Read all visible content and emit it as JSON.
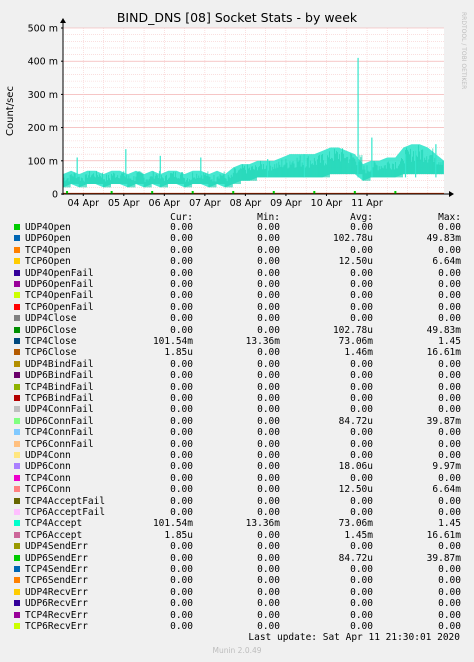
{
  "chart_data": {
    "type": "area",
    "title": "BIND_DNS [08] Socket Stats - by week",
    "ylabel": "Count/sec",
    "y_ticks": [
      "0",
      "100 m",
      "200 m",
      "300 m",
      "400 m",
      "500 m"
    ],
    "ylim": [
      0,
      0.5
    ],
    "x_ticks": [
      "04 Apr",
      "05 Apr",
      "06 Apr",
      "07 Apr",
      "08 Apr",
      "09 Apr",
      "10 Apr",
      "11 Apr"
    ],
    "watermark": "RRDTOOL / TOBI OETIKER",
    "grid": true,
    "series": [
      {
        "name": "TCP4Accept",
        "color": "#33e6cc",
        "approx_envelope": {
          "x": [
            0.0,
            0.2,
            0.4,
            0.6,
            0.8,
            1.0,
            1.2,
            1.4,
            1.6,
            1.8,
            2.0,
            2.2,
            2.4,
            2.6,
            2.8,
            3.0,
            3.2,
            3.4,
            3.6,
            3.8,
            4.0,
            4.2,
            4.4,
            4.6,
            4.8,
            5.0,
            5.2,
            5.4,
            5.6,
            5.8,
            6.0,
            6.2,
            6.4,
            6.6,
            6.8,
            7.0,
            7.2,
            7.4,
            7.6,
            7.8,
            8.0,
            8.2,
            8.4,
            8.6,
            8.8,
            9.0,
            9.2,
            9.4
          ],
          "low": [
            0.02,
            0.03,
            0.02,
            0.03,
            0.03,
            0.02,
            0.03,
            0.03,
            0.02,
            0.03,
            0.02,
            0.03,
            0.02,
            0.03,
            0.03,
            0.02,
            0.03,
            0.03,
            0.02,
            0.03,
            0.02,
            0.03,
            0.04,
            0.04,
            0.05,
            0.05,
            0.05,
            0.05,
            0.05,
            0.05,
            0.05,
            0.05,
            0.05,
            0.06,
            0.06,
            0.06,
            0.06,
            0.04,
            0.05,
            0.05,
            0.05,
            0.05,
            0.06,
            0.06,
            0.06,
            0.06,
            0.06,
            0.06
          ],
          "high": [
            0.06,
            0.07,
            0.06,
            0.07,
            0.07,
            0.06,
            0.07,
            0.07,
            0.06,
            0.07,
            0.06,
            0.07,
            0.06,
            0.07,
            0.07,
            0.06,
            0.07,
            0.07,
            0.06,
            0.07,
            0.06,
            0.08,
            0.09,
            0.09,
            0.1,
            0.1,
            0.1,
            0.11,
            0.12,
            0.12,
            0.12,
            0.12,
            0.13,
            0.14,
            0.14,
            0.13,
            0.12,
            0.09,
            0.1,
            0.1,
            0.11,
            0.11,
            0.14,
            0.15,
            0.15,
            0.14,
            0.12,
            0.1
          ]
        },
        "spikes": [
          [
            0.35,
            0.11
          ],
          [
            1.55,
            0.135
          ],
          [
            2.4,
            0.115
          ],
          [
            3.4,
            0.11
          ],
          [
            5.05,
            0.105
          ],
          [
            5.95,
            0.12
          ],
          [
            7.28,
            0.41
          ],
          [
            7.62,
            0.17
          ],
          [
            8.45,
            0.12
          ],
          [
            8.7,
            0.13
          ],
          [
            9.2,
            0.15
          ]
        ]
      },
      {
        "name": "TCP6Close",
        "color": "#cc3300",
        "baseline": 0.002
      },
      {
        "name": "UDP6Open",
        "color": "#00cc00",
        "markers": [
          0.1,
          1.2,
          2.2,
          3.2,
          4.2,
          5.2,
          6.2,
          7.2,
          8.2
        ]
      }
    ]
  },
  "legend": {
    "headers": {
      "cur": "Cur:",
      "min": "Min:",
      "avg": "Avg:",
      "max": "Max:"
    },
    "rows": [
      {
        "name": "UDP4Open",
        "color": "#00cc00",
        "cur": "0.00",
        "min": "0.00",
        "avg": "0.00",
        "max": "0.00"
      },
      {
        "name": "UDP6Open",
        "color": "#0066b3",
        "cur": "0.00",
        "min": "0.00",
        "avg": "102.78u",
        "max": "49.83m"
      },
      {
        "name": "TCP4Open",
        "color": "#ff8000",
        "cur": "0.00",
        "min": "0.00",
        "avg": "0.00",
        "max": "0.00"
      },
      {
        "name": "TCP6Open",
        "color": "#ffcc00",
        "cur": "0.00",
        "min": "0.00",
        "avg": "12.50u",
        "max": "6.64m"
      },
      {
        "name": "UDP4OpenFail",
        "color": "#330099",
        "cur": "0.00",
        "min": "0.00",
        "avg": "0.00",
        "max": "0.00"
      },
      {
        "name": "UDP6OpenFail",
        "color": "#990099",
        "cur": "0.00",
        "min": "0.00",
        "avg": "0.00",
        "max": "0.00"
      },
      {
        "name": "TCP4OpenFail",
        "color": "#ccff00",
        "cur": "0.00",
        "min": "0.00",
        "avg": "0.00",
        "max": "0.00"
      },
      {
        "name": "TCP6OpenFail",
        "color": "#ff0000",
        "cur": "0.00",
        "min": "0.00",
        "avg": "0.00",
        "max": "0.00"
      },
      {
        "name": "UDP4Close",
        "color": "#808080",
        "cur": "0.00",
        "min": "0.00",
        "avg": "0.00",
        "max": "0.00"
      },
      {
        "name": "UDP6Close",
        "color": "#008f00",
        "cur": "0.00",
        "min": "0.00",
        "avg": "102.78u",
        "max": "49.83m"
      },
      {
        "name": "TCP4Close",
        "color": "#00487d",
        "cur": "101.54m",
        "min": "13.36m",
        "avg": "73.06m",
        "max": "1.45"
      },
      {
        "name": "TCP6Close",
        "color": "#b35a00",
        "cur": "1.85u",
        "min": "0.00",
        "avg": "1.46m",
        "max": "16.61m"
      },
      {
        "name": "UDP4BindFail",
        "color": "#b38f00",
        "cur": "0.00",
        "min": "0.00",
        "avg": "0.00",
        "max": "0.00"
      },
      {
        "name": "UDP6BindFail",
        "color": "#6b006b",
        "cur": "0.00",
        "min": "0.00",
        "avg": "0.00",
        "max": "0.00"
      },
      {
        "name": "TCP4BindFail",
        "color": "#8fb300",
        "cur": "0.00",
        "min": "0.00",
        "avg": "0.00",
        "max": "0.00"
      },
      {
        "name": "TCP6BindFail",
        "color": "#b30000",
        "cur": "0.00",
        "min": "0.00",
        "avg": "0.00",
        "max": "0.00"
      },
      {
        "name": "UDP4ConnFail",
        "color": "#bebebe",
        "cur": "0.00",
        "min": "0.00",
        "avg": "0.00",
        "max": "0.00"
      },
      {
        "name": "UDP6ConnFail",
        "color": "#80ff80",
        "cur": "0.00",
        "min": "0.00",
        "avg": "84.72u",
        "max": "39.87m"
      },
      {
        "name": "TCP4ConnFail",
        "color": "#80c9ff",
        "cur": "0.00",
        "min": "0.00",
        "avg": "0.00",
        "max": "0.00"
      },
      {
        "name": "TCP6ConnFail",
        "color": "#ffc080",
        "cur": "0.00",
        "min": "0.00",
        "avg": "0.00",
        "max": "0.00"
      },
      {
        "name": "UDP4Conn",
        "color": "#ffe680",
        "cur": "0.00",
        "min": "0.00",
        "avg": "0.00",
        "max": "0.00"
      },
      {
        "name": "UDP6Conn",
        "color": "#aa80ff",
        "cur": "0.00",
        "min": "0.00",
        "avg": "18.06u",
        "max": "9.97m"
      },
      {
        "name": "TCP4Conn",
        "color": "#ee00cc",
        "cur": "0.00",
        "min": "0.00",
        "avg": "0.00",
        "max": "0.00"
      },
      {
        "name": "TCP6Conn",
        "color": "#ff8080",
        "cur": "0.00",
        "min": "0.00",
        "avg": "12.50u",
        "max": "6.64m"
      },
      {
        "name": "TCP4AcceptFail",
        "color": "#666600",
        "cur": "0.00",
        "min": "0.00",
        "avg": "0.00",
        "max": "0.00"
      },
      {
        "name": "TCP6AcceptFail",
        "color": "#ffbfff",
        "cur": "0.00",
        "min": "0.00",
        "avg": "0.00",
        "max": "0.00"
      },
      {
        "name": "TCP4Accept",
        "color": "#00ffcc",
        "cur": "101.54m",
        "min": "13.36m",
        "avg": "73.06m",
        "max": "1.45"
      },
      {
        "name": "TCP6Accept",
        "color": "#cc6699",
        "cur": "1.85u",
        "min": "0.00",
        "avg": "1.45m",
        "max": "16.61m"
      },
      {
        "name": "UDP4SendErr",
        "color": "#999900",
        "cur": "0.00",
        "min": "0.00",
        "avg": "0.00",
        "max": "0.00"
      },
      {
        "name": "UDP6SendErr",
        "color": "#00cc00",
        "cur": "0.00",
        "min": "0.00",
        "avg": "84.72u",
        "max": "39.87m"
      },
      {
        "name": "TCP4SendErr",
        "color": "#0066b3",
        "cur": "0.00",
        "min": "0.00",
        "avg": "0.00",
        "max": "0.00"
      },
      {
        "name": "TCP6SendErr",
        "color": "#ff8000",
        "cur": "0.00",
        "min": "0.00",
        "avg": "0.00",
        "max": "0.00"
      },
      {
        "name": "UDP4RecvErr",
        "color": "#ffcc00",
        "cur": "0.00",
        "min": "0.00",
        "avg": "0.00",
        "max": "0.00"
      },
      {
        "name": "UDP6RecvErr",
        "color": "#330099",
        "cur": "0.00",
        "min": "0.00",
        "avg": "0.00",
        "max": "0.00"
      },
      {
        "name": "TCP4RecvErr",
        "color": "#990099",
        "cur": "0.00",
        "min": "0.00",
        "avg": "0.00",
        "max": "0.00"
      },
      {
        "name": "TCP6RecvErr",
        "color": "#ccff00",
        "cur": "0.00",
        "min": "0.00",
        "avg": "0.00",
        "max": "0.00"
      }
    ]
  },
  "last_update": "Last update:  Sat Apr 11 21:30:01 2020",
  "version": "Munin 2.0.49"
}
